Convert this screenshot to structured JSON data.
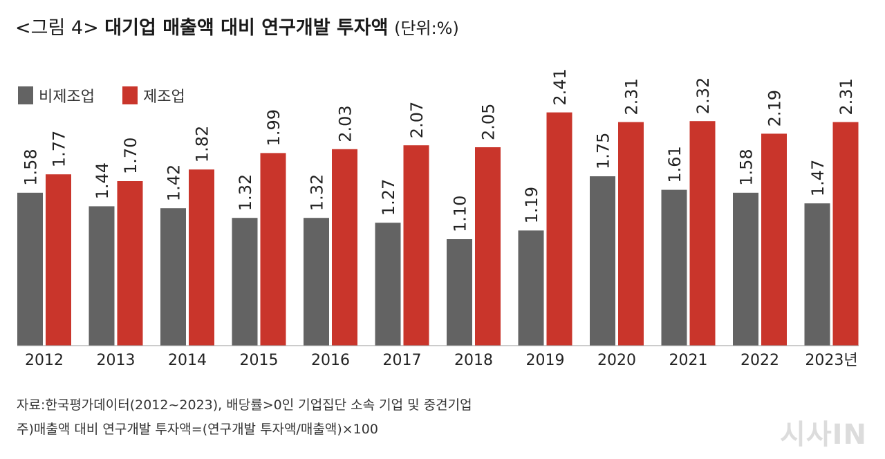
{
  "title": {
    "prefix": "<그림 4>",
    "main": "대기업 매출액 대비 연구개발 투자액",
    "unit": "(단위:%)"
  },
  "legend": [
    {
      "label": "비제조업",
      "color": "#636363"
    },
    {
      "label": "제조업",
      "color": "#c9352b"
    }
  ],
  "chart_data": {
    "type": "bar",
    "categories": [
      "2012",
      "2013",
      "2014",
      "2015",
      "2016",
      "2017",
      "2018",
      "2019",
      "2020",
      "2021",
      "2022",
      "2023년"
    ],
    "series": [
      {
        "name": "비제조업",
        "color": "#636363",
        "values": [
          1.58,
          1.44,
          1.42,
          1.32,
          1.32,
          1.27,
          1.1,
          1.19,
          1.75,
          1.61,
          1.58,
          1.47
        ]
      },
      {
        "name": "제조업",
        "color": "#c9352b",
        "values": [
          1.77,
          1.7,
          1.82,
          1.99,
          2.03,
          2.07,
          2.05,
          2.41,
          2.31,
          2.32,
          2.19,
          2.31
        ]
      }
    ],
    "value_labels": [
      [
        "1.58",
        "1.44",
        "1.42",
        "1.32",
        "1.32",
        "1.27",
        "1.10",
        "1.19",
        "1.75",
        "1.61",
        "1.58",
        "1.47"
      ],
      [
        "1.77",
        "1.70",
        "1.82",
        "1.99",
        "2.03",
        "2.07",
        "2.05",
        "2.41",
        "2.31",
        "2.32",
        "2.19",
        "2.31"
      ]
    ],
    "ylim": [
      0,
      2.5
    ],
    "grid": false,
    "legend_position": "top-left"
  },
  "footer": {
    "source": "자료:한국평가데이터(2012~2023), 배당률>0인 기업집단 소속 기업 및 중견기업",
    "note": "주)매출액 대비 연구개발 투자액=(연구개발 투자액/매출액)×100"
  },
  "watermark": "시사IN"
}
